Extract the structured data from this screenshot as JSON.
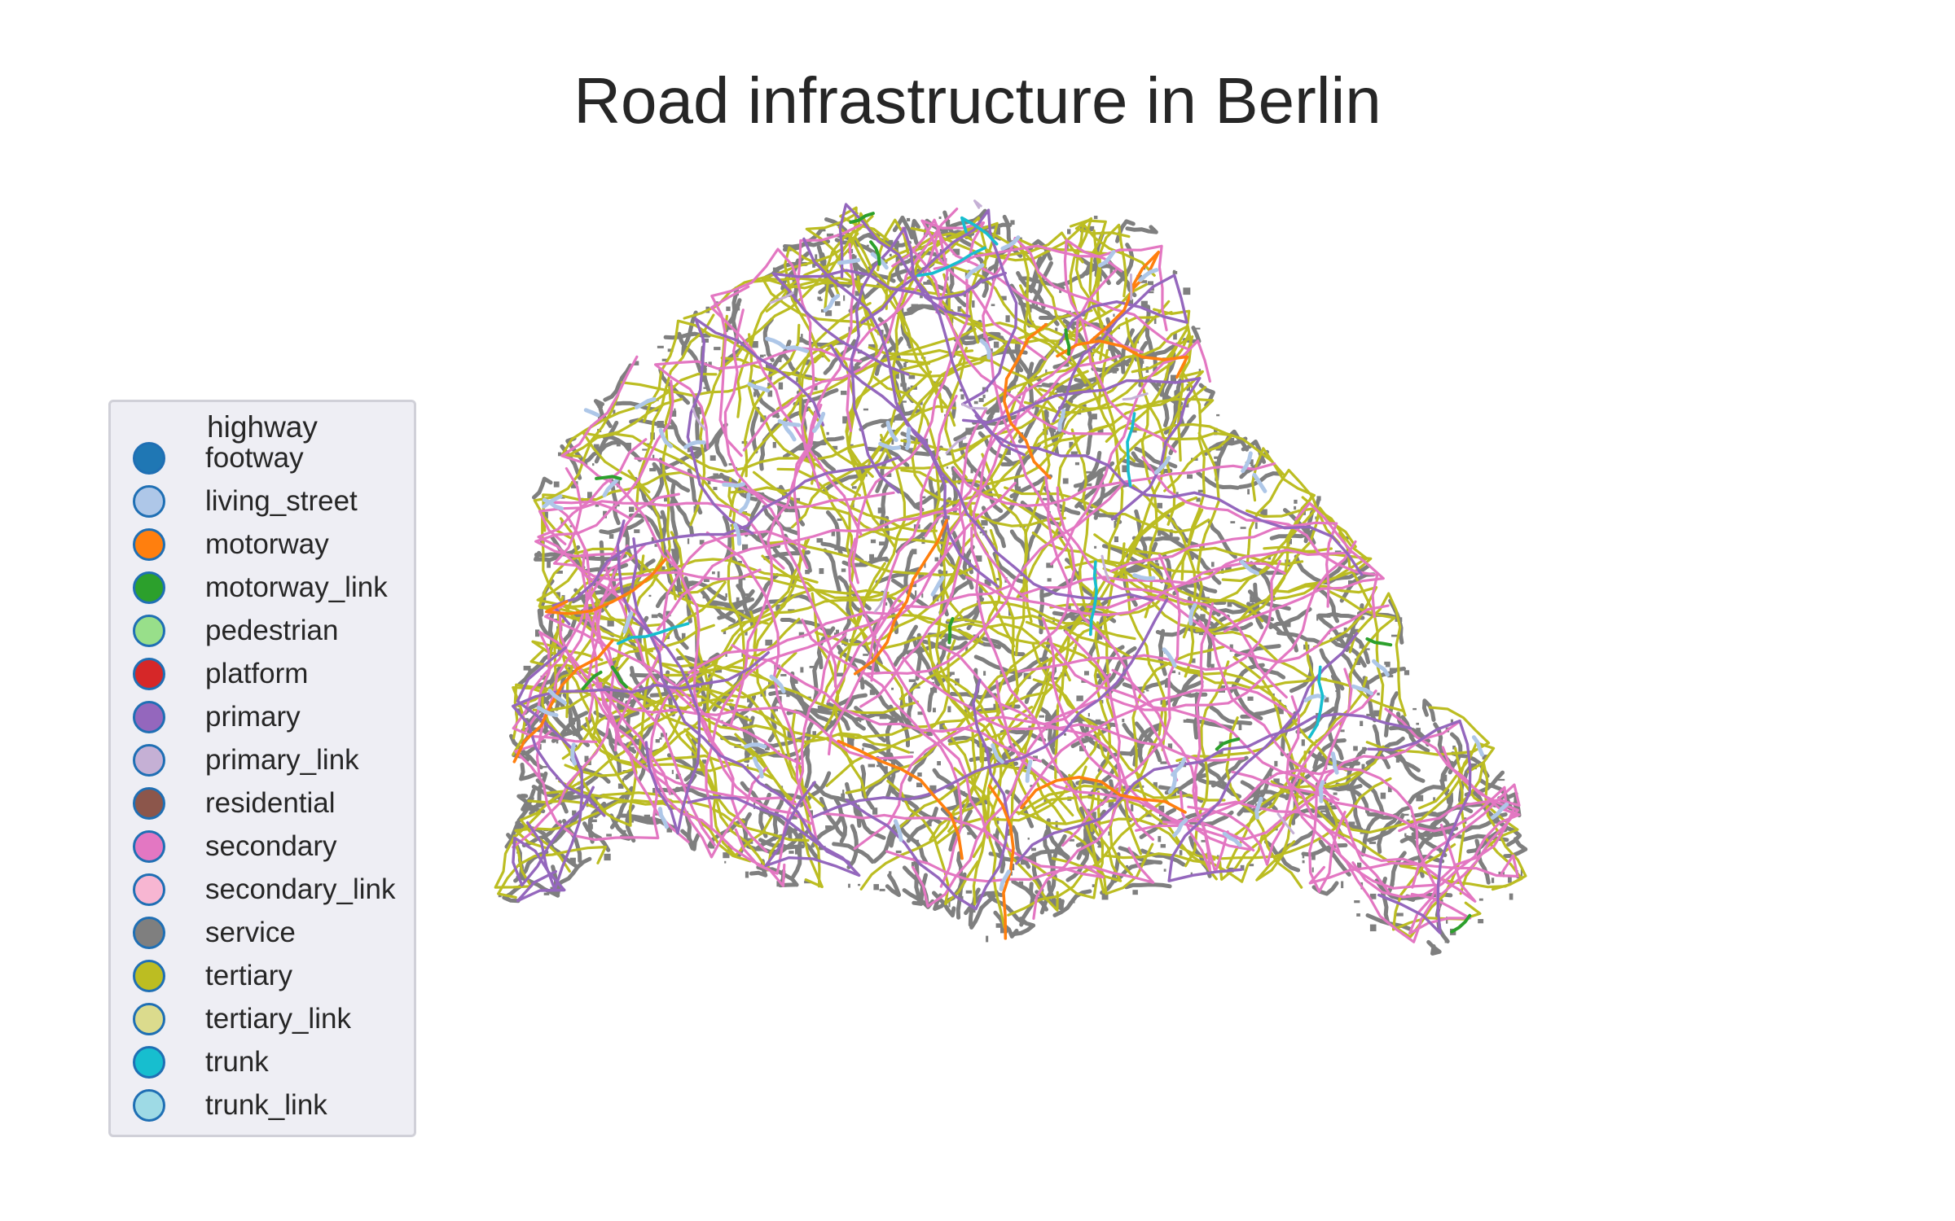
{
  "title": "Road infrastructure in Berlin",
  "legend": {
    "title": "highway",
    "items": [
      {
        "label": "footway",
        "color": "#1f77b4"
      },
      {
        "label": "living_street",
        "color": "#aec7e8"
      },
      {
        "label": "motorway",
        "color": "#ff7f0e"
      },
      {
        "label": "motorway_link",
        "color": "#2ca02c"
      },
      {
        "label": "pedestrian",
        "color": "#98df8a"
      },
      {
        "label": "platform",
        "color": "#d62728"
      },
      {
        "label": "primary",
        "color": "#9467bd"
      },
      {
        "label": "primary_link",
        "color": "#c5b0d5"
      },
      {
        "label": "residential",
        "color": "#8c564b"
      },
      {
        "label": "secondary",
        "color": "#e377c2"
      },
      {
        "label": "secondary_link",
        "color": "#f7b6d2"
      },
      {
        "label": "service",
        "color": "#7f7f7f"
      },
      {
        "label": "tertiary",
        "color": "#bcbd22"
      },
      {
        "label": "tertiary_link",
        "color": "#dbdb8d"
      },
      {
        "label": "trunk",
        "color": "#17becf"
      },
      {
        "label": "trunk_link",
        "color": "#9edae5"
      }
    ]
  }
}
